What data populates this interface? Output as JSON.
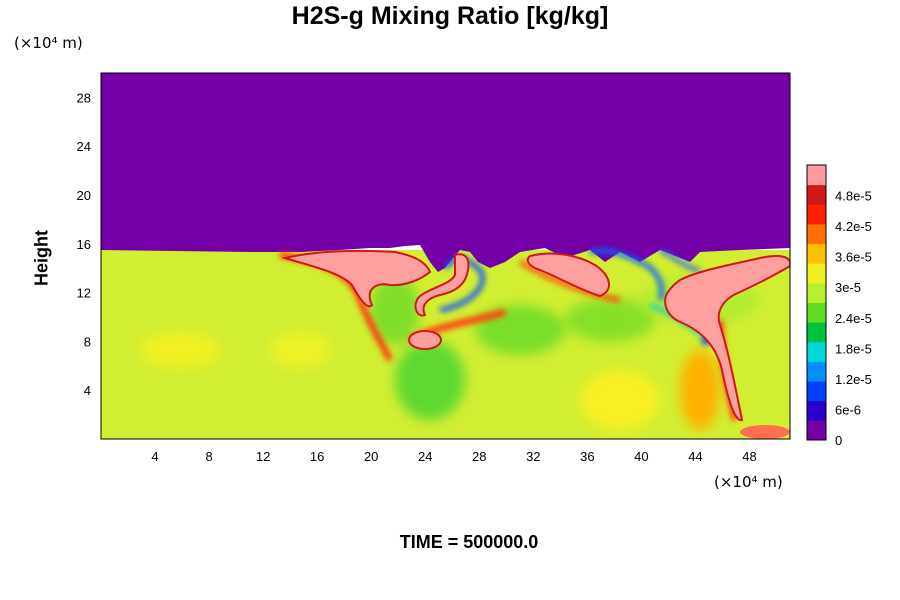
{
  "chart_data": {
    "type": "heatmap",
    "title": "H2S-g Mixing Ratio [kg/kg]",
    "ylabel": "Height",
    "x_unit": "(×10⁴ m)",
    "y_unit": "(×10⁴ m)",
    "footer": "TIME = 500000.0",
    "x_ticks": [
      "4",
      "8",
      "12",
      "16",
      "20",
      "24",
      "28",
      "32",
      "36",
      "40",
      "44",
      "48"
    ],
    "y_ticks": [
      "4",
      "8",
      "12",
      "16",
      "20",
      "24",
      "28"
    ],
    "xlim": [
      0,
      51
    ],
    "ylim": [
      0,
      30
    ],
    "colorbar_range": [
      0,
      5.4e-05
    ],
    "colorbar_ticks": [
      "0",
      "6e-6",
      "1.2e-5",
      "1.8e-5",
      "2.4e-5",
      "3e-5",
      "3.6e-5",
      "4.2e-5",
      "4.8e-5"
    ],
    "colormap": [
      "#7200a6",
      "#2a00c8",
      "#0040ff",
      "#0090ff",
      "#00d8d8",
      "#00c040",
      "#60dc20",
      "#b8f030",
      "#f0f020",
      "#ffc000",
      "#ff7000",
      "#ff2000",
      "#d01818",
      "#ff9aa0"
    ],
    "regions": {
      "upper_layer": "uniform minimum (0) above ~15.5",
      "lower_layer": "≈3.3e-5 to 3.6e-5 below ~15.5",
      "plumes": "saturated >4.8e-5 near x ≈ 17–26, 30–36, 42–50"
    }
  }
}
